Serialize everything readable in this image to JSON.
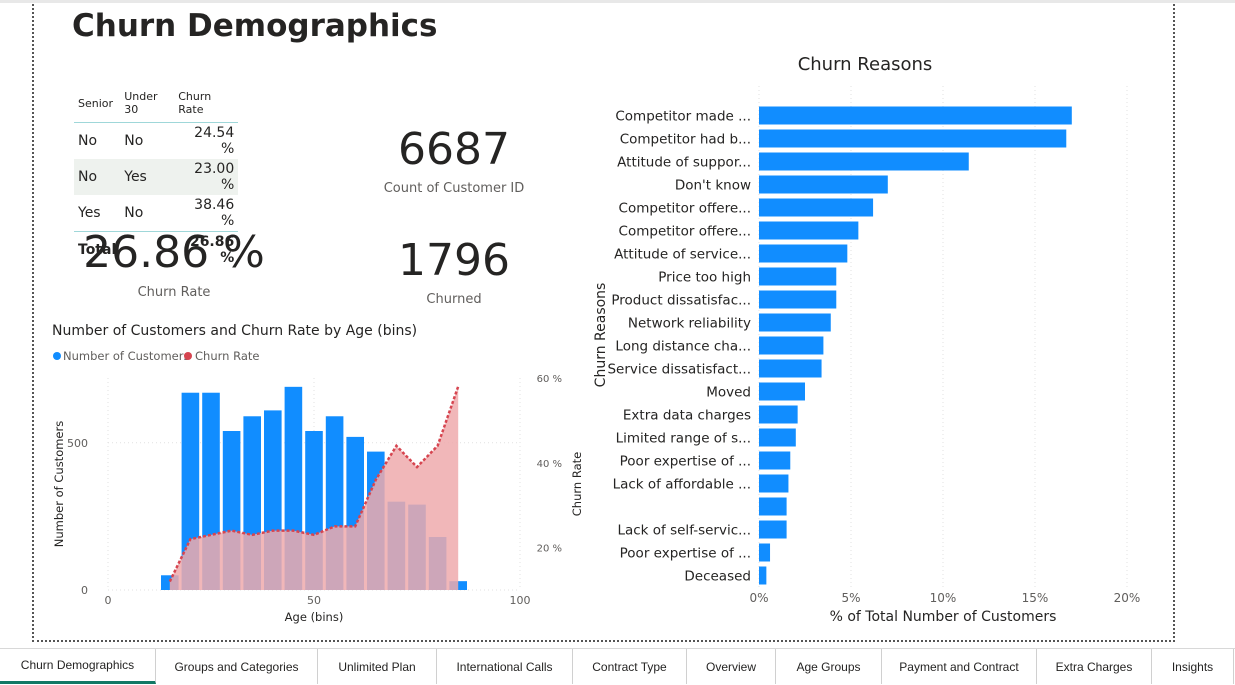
{
  "page": {
    "title": "Churn Demographics"
  },
  "matrix": {
    "headers": [
      "Senior",
      "Under 30",
      "Churn Rate"
    ],
    "rows": [
      {
        "senior": "No",
        "under30": "No",
        "rate": "24.54 %"
      },
      {
        "senior": "No",
        "under30": "Yes",
        "rate": "23.00 %"
      },
      {
        "senior": "Yes",
        "under30": "No",
        "rate": "38.46 %"
      }
    ],
    "total": {
      "label": "Total",
      "rate": "26.86 %"
    }
  },
  "cards": {
    "customers": {
      "value": "6687",
      "label": "Count of Customer ID"
    },
    "churn_rate": {
      "value": "26.86 %",
      "label": "Churn Rate"
    },
    "churned": {
      "value": "1796",
      "label": "Churned"
    }
  },
  "colors": {
    "bar_blue": "#118dff",
    "churn_red": "#d64550",
    "churn_fill": "#eeaaad",
    "active_tab": "#117865"
  },
  "chart_data": [
    {
      "type": "bar",
      "title": "Number of Customers and Churn Rate by Age (bins)",
      "legend": [
        "Number of Customers",
        "Churn Rate"
      ],
      "legend_position": "top-left",
      "xlabel": "Age (bins)",
      "ylabel": "Number of Customers",
      "y2label": "Churn Rate",
      "x_ticks": [
        "0",
        "50",
        "100"
      ],
      "y_ticks": [
        "0",
        "500"
      ],
      "y2_ticks": [
        "20 %",
        "40 %",
        "60 %"
      ],
      "xlim": [
        0,
        100
      ],
      "ylim": [
        0,
        720
      ],
      "y2lim": [
        10,
        60
      ],
      "bin_width": 5,
      "x": [
        15,
        20,
        25,
        30,
        35,
        40,
        45,
        50,
        55,
        60,
        65,
        70,
        75,
        80,
        85
      ],
      "series": [
        {
          "name": "Number of Customers",
          "values": [
            50,
            670,
            670,
            540,
            590,
            610,
            690,
            540,
            590,
            520,
            470,
            300,
            290,
            180,
            30
          ]
        },
        {
          "name": "Churn Rate",
          "values": [
            12,
            22,
            23,
            24,
            23,
            24,
            24,
            23,
            25,
            25,
            36,
            44,
            39,
            44,
            58
          ]
        }
      ]
    },
    {
      "type": "bar",
      "orientation": "horizontal",
      "title": "Churn Reasons",
      "xlabel": "% of Total Number of Customers",
      "ylabel": "Churn Reasons",
      "x_ticks": [
        "0%",
        "5%",
        "10%",
        "15%",
        "20%"
      ],
      "xlim": [
        0,
        20
      ],
      "categories": [
        "Competitor made ...",
        "Competitor had b...",
        "Attitude of suppor...",
        "Don't know",
        "Competitor offere...",
        "Competitor offere...",
        "Attitude of service...",
        "Price too high",
        "Product dissatisfac...",
        "Network reliability",
        "Long distance cha...",
        "Service dissatisfact...",
        "Moved",
        "Extra data charges",
        "Limited range of s...",
        "Poor expertise of ...",
        "Lack of affordable ...",
        "",
        "Lack of self-servic...",
        "Poor expertise of ...",
        "Deceased"
      ],
      "values": [
        17.0,
        16.7,
        11.4,
        7.0,
        6.2,
        5.4,
        4.8,
        4.2,
        4.2,
        3.9,
        3.5,
        3.4,
        2.5,
        2.1,
        2.0,
        1.7,
        1.6,
        1.5,
        1.5,
        0.6,
        0.4
      ]
    }
  ],
  "tabs": [
    {
      "label": "Churn Demographics",
      "active": true
    },
    {
      "label": "Groups and Categories",
      "active": false
    },
    {
      "label": "Unlimited Plan",
      "active": false
    },
    {
      "label": "International Calls",
      "active": false
    },
    {
      "label": "Contract Type",
      "active": false
    },
    {
      "label": "Overview",
      "active": false
    },
    {
      "label": "Age Groups",
      "active": false
    },
    {
      "label": "Payment and Contract",
      "active": false
    },
    {
      "label": "Extra Charges",
      "active": false
    },
    {
      "label": "Insights",
      "active": false
    }
  ]
}
